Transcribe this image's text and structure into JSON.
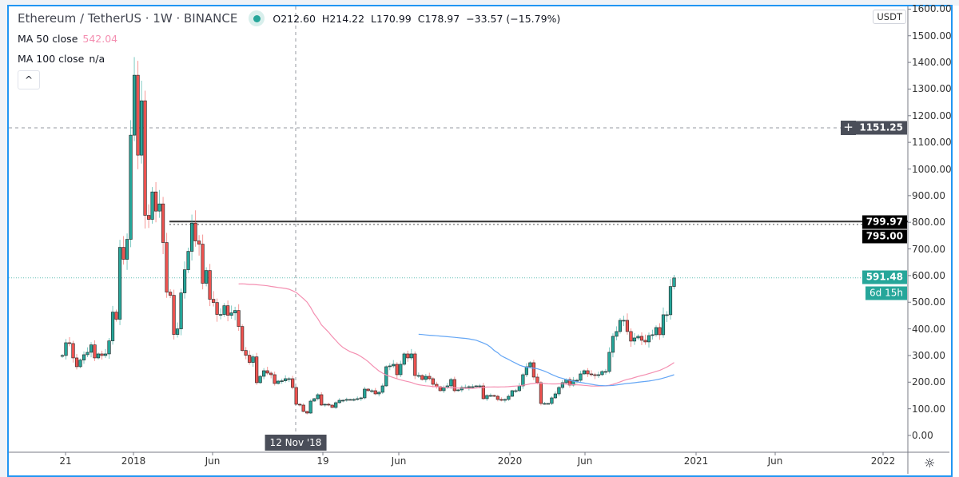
{
  "header": {
    "symbol_title": "Ethereum / TetherUS · 1W · BINANCE",
    "status_color": "#26a69a",
    "ohlc": {
      "open": "O212.60",
      "high": "H214.22",
      "low": "L170.99",
      "close": "C178.97",
      "change": "−33.57 (−15.79%)"
    }
  },
  "indicators": [
    {
      "label": "MA 50 close",
      "value": "542.04",
      "color": "#f48fb1"
    },
    {
      "label": "MA 100 close",
      "value": "n/a",
      "color": "#64a6f5"
    }
  ],
  "collapse_icon": "^",
  "price_axis": {
    "currency": "USDT",
    "ticks": [
      "0.00",
      "100.00",
      "200.00",
      "300.00",
      "400.00",
      "500.00",
      "600.00",
      "700.00",
      "800.00",
      "900.00",
      "1000.00",
      "1100.00",
      "1200.00",
      "1300.00",
      "1400.00",
      "1500.00",
      "1600.00"
    ],
    "crosshair_price": "1151.25",
    "line_label_1": "799.97",
    "line_label_2": "795.00",
    "last_price": "591.48",
    "countdown": "6d 15h"
  },
  "time_axis": {
    "ticks": [
      "21",
      "2018",
      "Jun",
      "19",
      "Jun",
      "2020",
      "Jun",
      "2021",
      "Jun",
      "2022"
    ],
    "crosshair_date": "12 Nov '18"
  },
  "colors": {
    "up": "#26a69a",
    "down": "#ef5350",
    "frame": "#2196f3",
    "ma50": "#f48fb1",
    "ma100": "#64a6f5"
  },
  "chart_data": {
    "type": "candlestick",
    "interval": "1W",
    "ylim": [
      0,
      1600
    ],
    "horizontal_lines": [
      799.97,
      795.0
    ],
    "weekly_closes": [
      300,
      348,
      345,
      291,
      258,
      283,
      303,
      312,
      340,
      291,
      306,
      300,
      306,
      355,
      463,
      436,
      706,
      661,
      736,
      1127,
      1352,
      1052,
      1256,
      826,
      811,
      914,
      842,
      869,
      724,
      538,
      526,
      379,
      400,
      535,
      622,
      691,
      797,
      730,
      718,
      571,
      619,
      511,
      499,
      454,
      454,
      487,
      451,
      460,
      469,
      409,
      319,
      301,
      274,
      295,
      198,
      222,
      243,
      234,
      228,
      195,
      204,
      205,
      213,
      213,
      180,
      117,
      114,
      90,
      84,
      129,
      138,
      153,
      114,
      117,
      114,
      105,
      123,
      132,
      132,
      135,
      135,
      135,
      138,
      141,
      174,
      168,
      168,
      156,
      162,
      186,
      258,
      261,
      267,
      228,
      267,
      306,
      291,
      306,
      225,
      225,
      210,
      222,
      213,
      192,
      183,
      168,
      180,
      186,
      210,
      168,
      171,
      180,
      180,
      183,
      183,
      186,
      186,
      138,
      150,
      150,
      147,
      135,
      132,
      135,
      147,
      168,
      168,
      186,
      228,
      258,
      273,
      219,
      198,
      120,
      120,
      120,
      141,
      156,
      180,
      198,
      210,
      189,
      207,
      207,
      231,
      243,
      231,
      228,
      225,
      228,
      240,
      240,
      312,
      372,
      390,
      432,
      432,
      390,
      354,
      366,
      372,
      357,
      351,
      375,
      378,
      405,
      378,
      453,
      453,
      559,
      591
    ]
  }
}
